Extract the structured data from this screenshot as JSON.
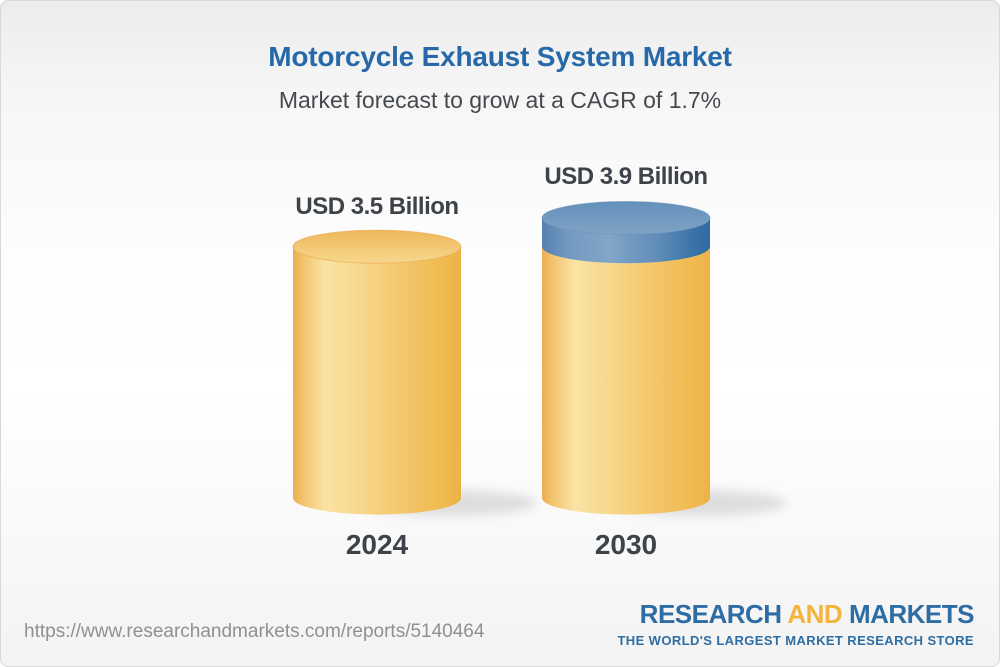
{
  "header": {
    "title": "Motorcycle Exhaust System Market",
    "subtitle": "Market forecast to grow at a CAGR of 1.7%"
  },
  "chart_data": {
    "type": "bar",
    "variant": "3d-cylinder",
    "categories": [
      "2024",
      "2030"
    ],
    "values": [
      3.5,
      3.9
    ],
    "unit": "USD Billion",
    "value_labels": [
      "USD 3.5 Billion",
      "USD 3.9 Billion"
    ],
    "cagr_percent": 1.7,
    "title": "Motorcycle Exhaust System Market",
    "subtitle": "Market forecast to grow at a CAGR of 1.7%",
    "xlabel": "",
    "ylabel": "",
    "legend": "none",
    "axes_shown": false,
    "colors": {
      "base_gold": "#F3C96F",
      "growth_blue": "#6C96BE"
    },
    "notes": "2030 cylinder shows 2024 base in gold plus incremental growth as a blue cap"
  },
  "footer": {
    "url": "https://www.researchandmarkets.com/reports/5140464",
    "logo": {
      "word1": "RESEARCH",
      "word2": "AND",
      "word3": "MARKETS",
      "tagline": "THE WORLD'S LARGEST MARKET RESEARCH STORE",
      "blue": "#2E6DA4",
      "yellow": "#F2B43C"
    }
  }
}
